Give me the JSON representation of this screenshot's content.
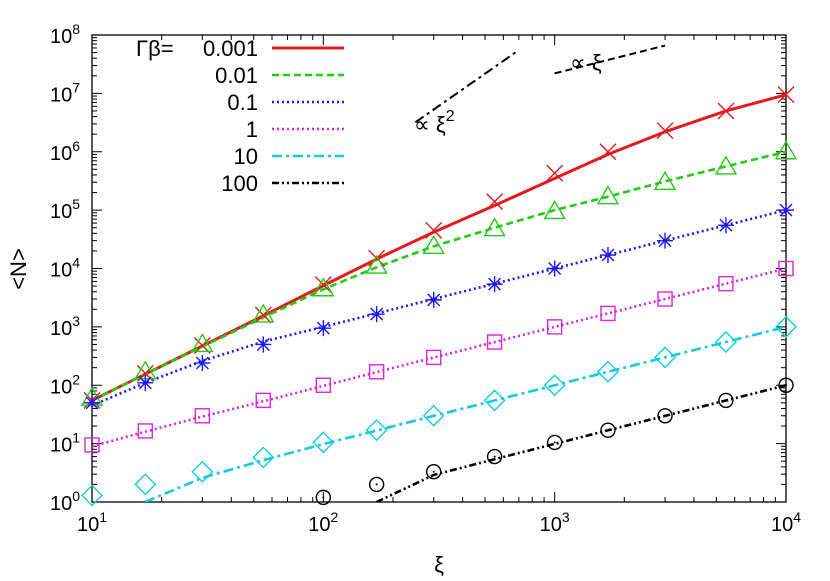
{
  "chart_data": {
    "type": "line",
    "xlabel": "ξ",
    "ylabel": "<N>",
    "xscale": "log",
    "yscale": "log",
    "xlim": [
      10,
      10000
    ],
    "ylim": [
      1,
      100000000
    ],
    "x_ticks": [
      {
        "base": "10",
        "exp": "1",
        "value": 10
      },
      {
        "base": "10",
        "exp": "2",
        "value": 100
      },
      {
        "base": "10",
        "exp": "3",
        "value": 1000
      },
      {
        "base": "10",
        "exp": "4",
        "value": 10000
      }
    ],
    "y_ticks": [
      {
        "base": "10",
        "exp": "0",
        "value": 1
      },
      {
        "base": "10",
        "exp": "1",
        "value": 10
      },
      {
        "base": "10",
        "exp": "2",
        "value": 100
      },
      {
        "base": "10",
        "exp": "3",
        "value": 1000
      },
      {
        "base": "10",
        "exp": "4",
        "value": 10000
      },
      {
        "base": "10",
        "exp": "5",
        "value": 100000
      },
      {
        "base": "10",
        "exp": "6",
        "value": 1000000
      },
      {
        "base": "10",
        "exp": "7",
        "value": 10000000
      },
      {
        "base": "10",
        "exp": "8",
        "value": 100000000
      }
    ],
    "grid": false,
    "legend_position": "top-left",
    "legend_title": "Γβ=",
    "series": [
      {
        "name": "0.001",
        "color": "#e41a1c",
        "dash": "solid",
        "marker": "x",
        "line": {
          "x": [
            10,
            17,
            30,
            55,
            100,
            170,
            300,
            550,
            1000,
            1700,
            3000,
            5500,
            10000
          ],
          "y": [
            55,
            155,
            470,
            1550,
            5100,
            14500,
            42000,
            120000,
            350000,
            900000,
            2200000,
            5000000,
            9500000
          ]
        },
        "points": {
          "x": [
            10,
            17,
            30,
            55,
            100,
            170,
            300,
            550,
            1000,
            1700,
            3000,
            5500,
            10000
          ],
          "y": [
            55,
            160,
            480,
            1600,
            5300,
            15000,
            45000,
            140000,
            430000,
            1000000,
            2300000,
            5000000,
            9500000
          ]
        }
      },
      {
        "name": "0.01",
        "color": "#22cc11",
        "dash": "dashed",
        "marker": "triangle",
        "line": {
          "x": [
            10,
            17,
            30,
            55,
            100,
            170,
            300,
            550,
            1000,
            1700,
            3000,
            5500,
            10000
          ],
          "y": [
            55,
            155,
            460,
            1450,
            4400,
            10500,
            24000,
            50000,
            100000,
            170000,
            310000,
            560000,
            1000000
          ]
        },
        "points": {
          "x": [
            10,
            17,
            30,
            55,
            100,
            170,
            300,
            550,
            1000,
            1700,
            3000,
            5500,
            10000
          ],
          "y": [
            60,
            170,
            500,
            1600,
            4500,
            11000,
            24000,
            48000,
            95000,
            170000,
            300000,
            550000,
            1000000
          ]
        }
      },
      {
        "name": "0.1",
        "color": "#1a1aee",
        "dash": "dotted",
        "marker": "asterisk",
        "line": {
          "x": [
            10,
            17,
            30,
            55,
            100,
            170,
            300,
            550,
            1000,
            1700,
            3000,
            5500,
            10000
          ],
          "y": [
            45,
            110,
            260,
            560,
            1000,
            1700,
            3000,
            5500,
            10000,
            17000,
            30000,
            55000,
            100000
          ]
        },
        "points": {
          "x": [
            10,
            17,
            30,
            55,
            100,
            170,
            300,
            550,
            1000,
            1700,
            3000,
            5500,
            10000
          ],
          "y": [
            50,
            110,
            240,
            500,
            950,
            1650,
            2900,
            5400,
            10000,
            17000,
            30000,
            55000,
            100000
          ]
        }
      },
      {
        "name": "1",
        "color": "#dd22dd",
        "dash": "dotted",
        "marker": "square",
        "line": {
          "x": [
            10,
            17,
            30,
            55,
            100,
            170,
            300,
            550,
            1000,
            1700,
            3000,
            5500,
            10000
          ],
          "y": [
            9,
            16,
            29,
            53,
            98,
            168,
            298,
            548,
            1000,
            1700,
            3000,
            5500,
            10000
          ]
        },
        "points": {
          "x": [
            10,
            17,
            30,
            55,
            100,
            170,
            300,
            550,
            1000,
            1700,
            3000,
            5500,
            10000
          ],
          "y": [
            9.5,
            16.5,
            30,
            55,
            100,
            170,
            300,
            550,
            1000,
            1700,
            3000,
            5500,
            10000
          ]
        }
      },
      {
        "name": "10",
        "color": "#11ccdd",
        "dash": "dashdot",
        "marker": "diamond",
        "line": {
          "x": [
            17,
            30,
            55,
            100,
            170,
            300,
            550,
            1000,
            1700,
            3000,
            5500,
            10000
          ],
          "y": [
            1,
            2.6,
            5.2,
            9.8,
            16.8,
            29.8,
            54.8,
            100,
            170,
            300,
            550,
            1000
          ]
        },
        "points": {
          "x": [
            10,
            17,
            30,
            55,
            100,
            170,
            300,
            550,
            1000,
            1700,
            3000,
            5500,
            10000
          ],
          "y": [
            1.3,
            2,
            3.3,
            5.8,
            10.5,
            17,
            30,
            55,
            100,
            170,
            300,
            550,
            1000
          ]
        }
      },
      {
        "name": "100",
        "color": "#000000",
        "dash": "dashdotdot",
        "marker": "circle",
        "line": {
          "x": [
            170,
            300,
            550,
            1000,
            1700,
            3000,
            5500,
            10000
          ],
          "y": [
            1,
            2.9,
            5.4,
            9.9,
            16.9,
            29.9,
            54.9,
            100
          ]
        },
        "points": {
          "x": [
            100,
            170,
            300,
            550,
            1000,
            1700,
            3000,
            5500,
            10000
          ],
          "y": [
            1.2,
            2,
            3.3,
            6,
            10.5,
            17,
            30,
            55,
            100
          ]
        }
      }
    ],
    "annotations": [
      {
        "text": "∝ ξ",
        "sup": "2",
        "guide": {
          "x": [
            250,
            700
          ],
          "y": [
            3200000,
            55000000
          ]
        },
        "dash": "dashdot"
      },
      {
        "text": "∝ ξ",
        "sup": "",
        "guide": {
          "x": [
            1000,
            3000
          ],
          "y": [
            22000000,
            66000000
          ]
        },
        "dash": "dashed"
      }
    ]
  }
}
